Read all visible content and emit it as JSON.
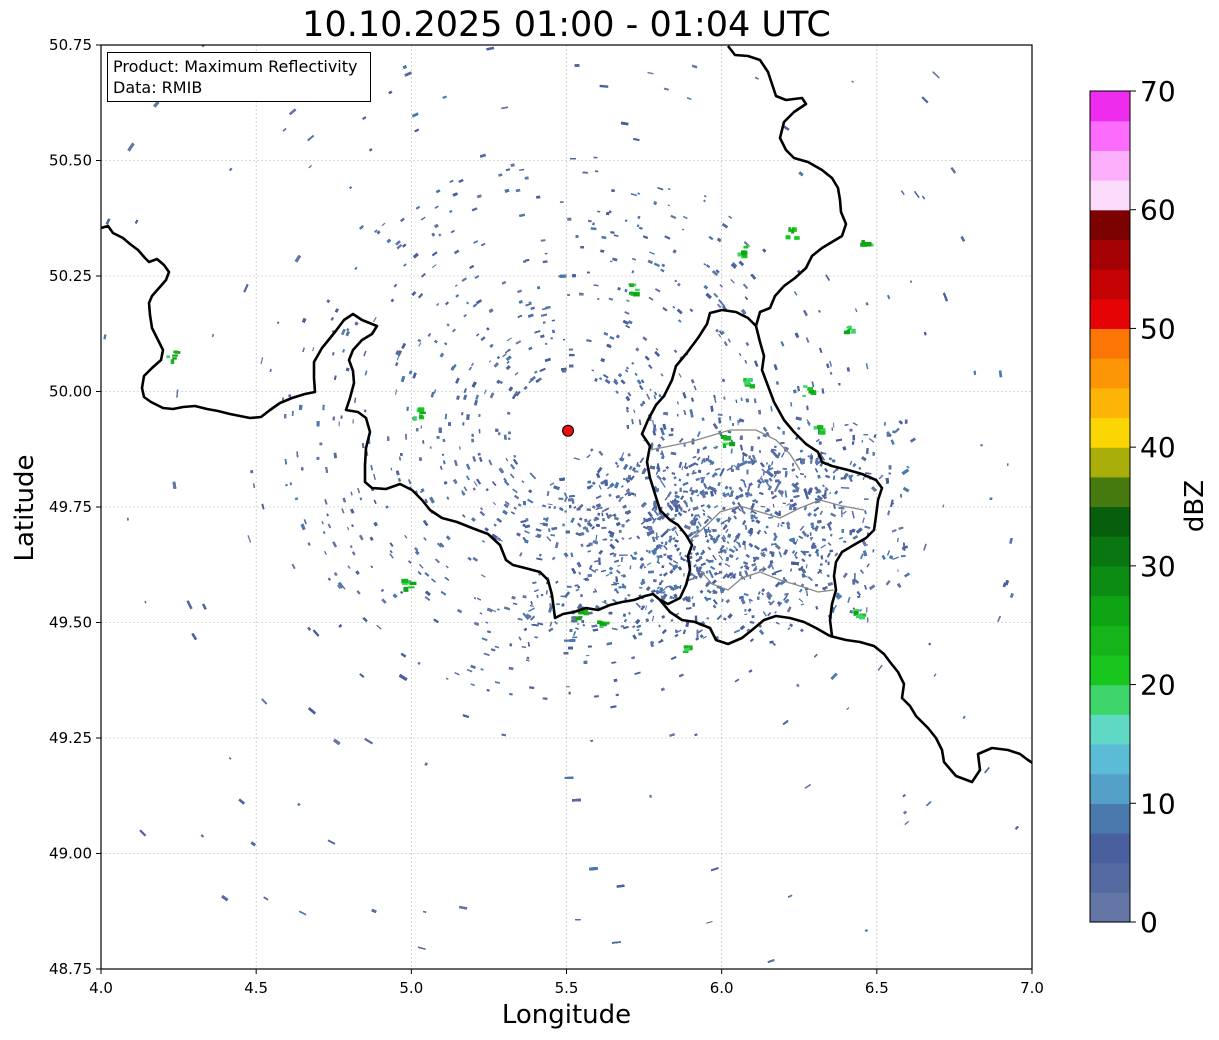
{
  "title": "10.10.2025 01:00 - 01:04 UTC",
  "info_box": {
    "product": "Product: Maximum Reflectivity",
    "data_source": "Data: RMIB"
  },
  "chart_data": {
    "type": "heatmap",
    "title": "10.10.2025 01:00 - 01:04 UTC",
    "xlabel": "Longitude",
    "ylabel": "Latitude",
    "xlim": [
      4.0,
      7.0
    ],
    "ylim": [
      48.75,
      50.75
    ],
    "x_ticks": [
      "4.0",
      "4.5",
      "5.0",
      "5.5",
      "6.0",
      "6.5",
      "7.0"
    ],
    "y_ticks": [
      "48.75",
      "49.00",
      "49.25",
      "49.50",
      "49.75",
      "50.00",
      "50.25",
      "50.50",
      "50.75"
    ],
    "grid": true,
    "radar_site": {
      "lon": 5.505,
      "lat": 49.915
    },
    "colorbar": {
      "label": "dBZ",
      "min": 0,
      "max": 70,
      "ticks": [
        "0",
        "10",
        "20",
        "30",
        "40",
        "50",
        "60",
        "70"
      ],
      "colors": [
        "#6476a6",
        "#566aa2",
        "#4a609e",
        "#4a79ae",
        "#55a0c8",
        "#5cbcd8",
        "#5fd8c4",
        "#3ed66a",
        "#18c61e",
        "#14b41a",
        "#0fa414",
        "#0c8c12",
        "#0a7610",
        "#075e0c",
        "#467a0e",
        "#aaae0a",
        "#fcd604",
        "#fcb406",
        "#fc9606",
        "#fc7606",
        "#e40406",
        "#c40204",
        "#a40204",
        "#7c0202",
        "#fcdcfc",
        "#fcb0fc",
        "#fc6cfc",
        "#ee2cee"
      ]
    },
    "echo_summary": "Low reflectivity (0-10 dBZ) clutter concentrated around 49.5-49.9 N, 5.4-6.4 E, scattered 20-30 dBZ cells"
  },
  "colors": {
    "border": "#000000",
    "grid": "#b4b4b4",
    "echo_main": "#4a609e",
    "site_marker": "#e81010"
  }
}
